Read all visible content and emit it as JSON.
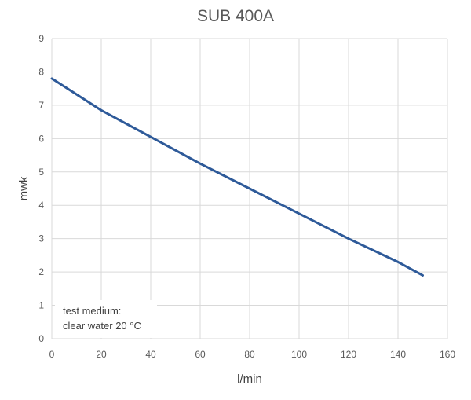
{
  "chart_data": {
    "type": "line",
    "title": "SUB 400A",
    "xlabel": "l/min",
    "ylabel": "mwk",
    "xlim": [
      0,
      160
    ],
    "ylim": [
      0,
      9
    ],
    "xticks": [
      0,
      20,
      40,
      60,
      80,
      100,
      120,
      140,
      160
    ],
    "yticks": [
      0,
      1,
      2,
      3,
      4,
      5,
      6,
      7,
      8,
      9
    ],
    "grid": true,
    "color": "#2e5a99",
    "series": [
      {
        "x": [
          0,
          20,
          40,
          60,
          80,
          100,
          120,
          140,
          150
        ],
        "y": [
          7.8,
          6.85,
          6.05,
          5.25,
          4.5,
          3.75,
          3.0,
          2.3,
          1.9
        ]
      }
    ],
    "annotation": {
      "line1": "test medium:",
      "line2": "clear water 20 °C"
    }
  }
}
